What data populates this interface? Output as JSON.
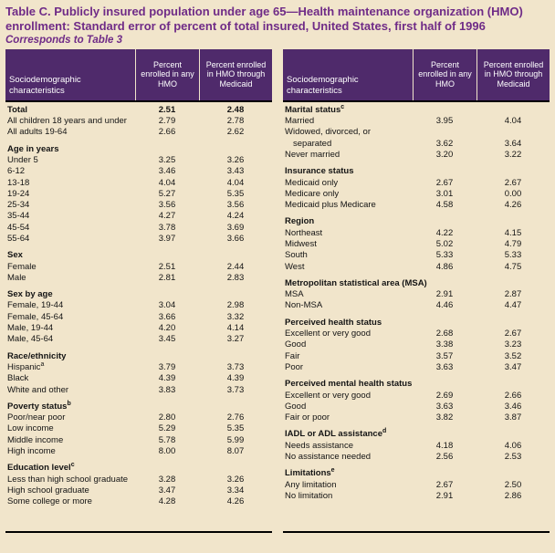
{
  "title": {
    "text": "Table C.  Publicly insured population under age 65—Health maintenance organization (HMO) enrollment: Standard error of percent of total insured, United States, first half of 1996",
    "note": "Corresponds to Table 3"
  },
  "columns": {
    "characteristics": "Sociodemographic characteristics",
    "any_hmo": "Percent enrolled in any HMO",
    "medicaid_hmo": "Percent enrolled in HMO through Medicaid"
  },
  "colors": {
    "background": "#f1e5cb",
    "header_purple": "#4f2a6b",
    "title_purple": "#6f2b87",
    "rule_black": "#000000"
  },
  "chart_data": {
    "type": "table",
    "title": "Table C. Publicly insured population under age 65—HMO enrollment: Standard error of percent of total insured, United States, first half of 1996",
    "columns": [
      "Sociodemographic characteristics",
      "Percent enrolled in any HMO",
      "Percent enrolled in HMO through Medicaid"
    ]
  },
  "tables": [
    {
      "name": "left",
      "rows": [
        {
          "type": "data",
          "bold": true,
          "label": "Total",
          "any": "2.51",
          "med": "2.48"
        },
        {
          "type": "data",
          "label": "All children 18 years and under",
          "any": "2.79",
          "med": "2.78"
        },
        {
          "type": "data",
          "label": "All adults 19-64",
          "any": "2.66",
          "med": "2.62"
        },
        {
          "type": "section",
          "label": "Age in years"
        },
        {
          "type": "data",
          "label": "Under 5",
          "any": "3.25",
          "med": "3.26"
        },
        {
          "type": "data",
          "label": "6-12",
          "any": "3.46",
          "med": "3.43"
        },
        {
          "type": "data",
          "label": "13-18",
          "any": "4.04",
          "med": "4.04"
        },
        {
          "type": "data",
          "label": "19-24",
          "any": "5.27",
          "med": "5.35"
        },
        {
          "type": "data",
          "label": "25-34",
          "any": "3.56",
          "med": "3.56"
        },
        {
          "type": "data",
          "label": "35-44",
          "any": "4.27",
          "med": "4.24"
        },
        {
          "type": "data",
          "label": "45-54",
          "any": "3.78",
          "med": "3.69"
        },
        {
          "type": "data",
          "label": "55-64",
          "any": "3.97",
          "med": "3.66"
        },
        {
          "type": "section",
          "label": "Sex"
        },
        {
          "type": "data",
          "label": "Female",
          "any": "2.51",
          "med": "2.44"
        },
        {
          "type": "data",
          "label": "Male",
          "any": "2.81",
          "med": "2.83"
        },
        {
          "type": "section",
          "label": "Sex by age"
        },
        {
          "type": "data",
          "label": "Female, 19-44",
          "any": "3.04",
          "med": "2.98"
        },
        {
          "type": "data",
          "label": "Female, 45-64",
          "any": "3.66",
          "med": "3.32"
        },
        {
          "type": "data",
          "label": "Male, 19-44",
          "any": "4.20",
          "med": "4.14"
        },
        {
          "type": "data",
          "label": "Male, 45-64",
          "any": "3.45",
          "med": "3.27"
        },
        {
          "type": "section",
          "label": "Race/ethnicity"
        },
        {
          "type": "data",
          "label": "Hispanic",
          "sup": "a",
          "any": "3.79",
          "med": "3.73"
        },
        {
          "type": "data",
          "label": "Black",
          "any": "4.39",
          "med": "4.39"
        },
        {
          "type": "data",
          "label": "White and other",
          "any": "3.83",
          "med": "3.73"
        },
        {
          "type": "section",
          "label": "Poverty status",
          "sup": "b"
        },
        {
          "type": "data",
          "label": "Poor/near poor",
          "any": "2.80",
          "med": "2.76"
        },
        {
          "type": "data",
          "label": "Low income",
          "any": "5.29",
          "med": "5.35"
        },
        {
          "type": "data",
          "label": "Middle income",
          "any": "5.78",
          "med": "5.99"
        },
        {
          "type": "data",
          "label": "High income",
          "any": "8.00",
          "med": "8.07"
        },
        {
          "type": "section",
          "label": "Education level",
          "sup": "c"
        },
        {
          "type": "data",
          "label": "Less than high school graduate",
          "any": "3.28",
          "med": "3.26"
        },
        {
          "type": "data",
          "label": "High school graduate",
          "any": "3.47",
          "med": "3.34"
        },
        {
          "type": "data",
          "label": "Some college or more",
          "any": "4.28",
          "med": "4.26"
        }
      ]
    },
    {
      "name": "right",
      "rows": [
        {
          "type": "section",
          "label": "Marital status",
          "sup": "c",
          "first": true
        },
        {
          "type": "data",
          "label": "Married",
          "any": "3.95",
          "med": "4.04"
        },
        {
          "type": "data",
          "label": "Widowed, divorced, or separated",
          "any": "3.62",
          "med": "3.64"
        },
        {
          "type": "data",
          "label": "Never married",
          "any": "3.20",
          "med": "3.22"
        },
        {
          "type": "section",
          "label": "Insurance status"
        },
        {
          "type": "data",
          "label": "Medicaid only",
          "any": "2.67",
          "med": "2.67"
        },
        {
          "type": "data",
          "label": "Medicare only",
          "any": "3.01",
          "med": "0.00"
        },
        {
          "type": "data",
          "label": "Medicaid plus Medicare",
          "any": "4.58",
          "med": "4.26"
        },
        {
          "type": "section",
          "label": "Region"
        },
        {
          "type": "data",
          "label": "Northeast",
          "any": "4.22",
          "med": "4.15"
        },
        {
          "type": "data",
          "label": "Midwest",
          "any": "5.02",
          "med": "4.79"
        },
        {
          "type": "data",
          "label": "South",
          "any": "5.33",
          "med": "5.33"
        },
        {
          "type": "data",
          "label": "West",
          "any": "4.86",
          "med": "4.75"
        },
        {
          "type": "section",
          "label": "Metropolitan statistical area (MSA)"
        },
        {
          "type": "data",
          "label": "MSA",
          "any": "2.91",
          "med": "2.87"
        },
        {
          "type": "data",
          "label": "Non-MSA",
          "any": "4.46",
          "med": "4.47"
        },
        {
          "type": "section",
          "label": "Perceived health status"
        },
        {
          "type": "data",
          "label": "Excellent or very good",
          "any": "2.68",
          "med": "2.67"
        },
        {
          "type": "data",
          "label": "Good",
          "any": "3.38",
          "med": "3.23"
        },
        {
          "type": "data",
          "label": "Fair",
          "any": "3.57",
          "med": "3.52"
        },
        {
          "type": "data",
          "label": "Poor",
          "any": "3.63",
          "med": "3.47"
        },
        {
          "type": "section",
          "label": "Perceived mental health status"
        },
        {
          "type": "data",
          "label": "Excellent or very good",
          "any": "2.69",
          "med": "2.66"
        },
        {
          "type": "data",
          "label": "Good",
          "any": "3.63",
          "med": "3.46"
        },
        {
          "type": "data",
          "label": "Fair or poor",
          "any": "3.82",
          "med": "3.87"
        },
        {
          "type": "section",
          "label": "IADL or ADL assistance",
          "sup": "d"
        },
        {
          "type": "data",
          "label": "Needs assistance",
          "any": "4.18",
          "med": "4.06"
        },
        {
          "type": "data",
          "label": "No assistance needed",
          "any": "2.56",
          "med": "2.53"
        },
        {
          "type": "section",
          "label": "Limitations",
          "sup": "e"
        },
        {
          "type": "data",
          "label": "Any limitation",
          "any": "2.67",
          "med": "2.50"
        },
        {
          "type": "data",
          "label": "No limitation",
          "any": "2.91",
          "med": "2.86"
        }
      ]
    }
  ]
}
